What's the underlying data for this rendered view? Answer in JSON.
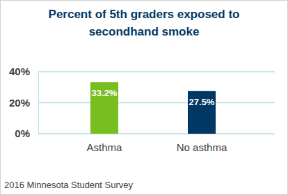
{
  "chart_data": {
    "type": "bar",
    "title": "Percent of 5th graders exposed to secondhand smoke",
    "categories": [
      "Asthma",
      "No asthma"
    ],
    "values": [
      33.2,
      27.5
    ],
    "value_labels": [
      "33.2%",
      "27.5%"
    ],
    "colors": [
      "#78be20",
      "#003865"
    ],
    "ylim": [
      0,
      40
    ],
    "yticks": [
      {
        "value": 0,
        "label": "0%"
      },
      {
        "value": 20,
        "label": "20%"
      },
      {
        "value": 40,
        "label": "40%"
      }
    ],
    "grid": true,
    "data_labels": true,
    "source": "2016 Minnesota Student Survey"
  }
}
